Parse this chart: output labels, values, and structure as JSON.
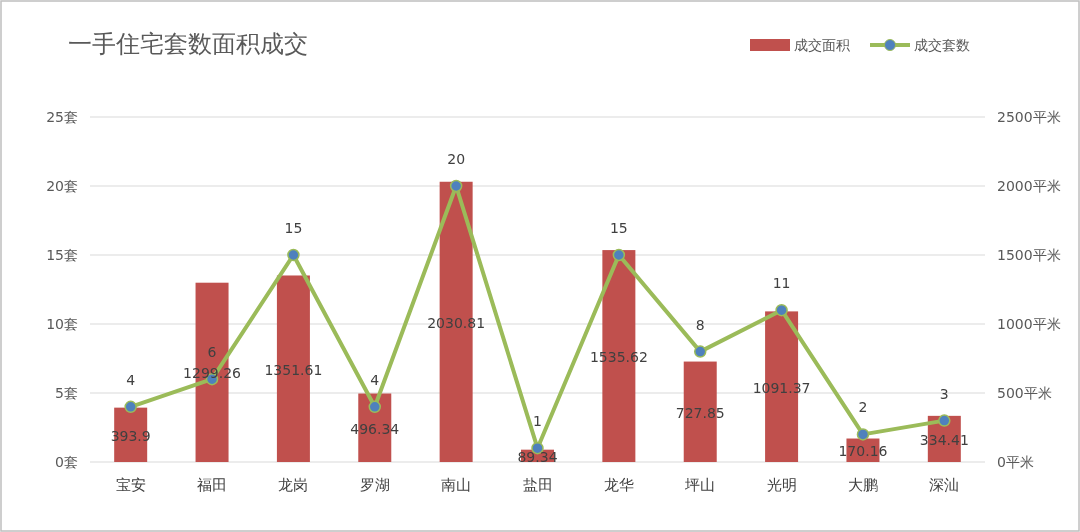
{
  "chart_data": {
    "type": "bar",
    "title": "一手住宅套数面积成交",
    "categories": [
      "宝安",
      "福田",
      "龙岗",
      "罗湖",
      "南山",
      "盐田",
      "龙华",
      "坪山",
      "光明",
      "大鹏",
      "深汕"
    ],
    "series": [
      {
        "name": "成交面积",
        "axis": "y2",
        "color": "#c0504d",
        "values": [
          393.9,
          1299.26,
          1351.61,
          496.34,
          2030.81,
          89.34,
          1535.62,
          727.85,
          1091.37,
          170.16,
          334.41
        ]
      },
      {
        "name": "成交套数",
        "type": "line",
        "axis": "y",
        "color": "#9bbb59",
        "values": [
          4,
          6,
          15,
          4,
          20,
          1,
          15,
          8,
          11,
          2,
          3
        ]
      }
    ],
    "ylim": [
      0,
      25
    ],
    "yticks": [
      {
        "value": 0,
        "label": "0套"
      },
      {
        "value": 5,
        "label": "5套"
      },
      {
        "value": 10,
        "label": "10套"
      },
      {
        "value": 15,
        "label": "15套"
      },
      {
        "value": 20,
        "label": "20套"
      },
      {
        "value": 25,
        "label": "25套"
      }
    ],
    "y2lim": [
      0,
      2500
    ],
    "y2ticks": [
      {
        "value": 0,
        "label": "0平米"
      },
      {
        "value": 500,
        "label": "500平米"
      },
      {
        "value": 1000,
        "label": "1000平米"
      },
      {
        "value": 1500,
        "label": "1500平米"
      },
      {
        "value": 2000,
        "label": "2000平米"
      },
      {
        "value": 2500,
        "label": "2500平米"
      }
    ],
    "grid": "y",
    "legend": "top right",
    "marker": "circle",
    "data_labels": true
  }
}
